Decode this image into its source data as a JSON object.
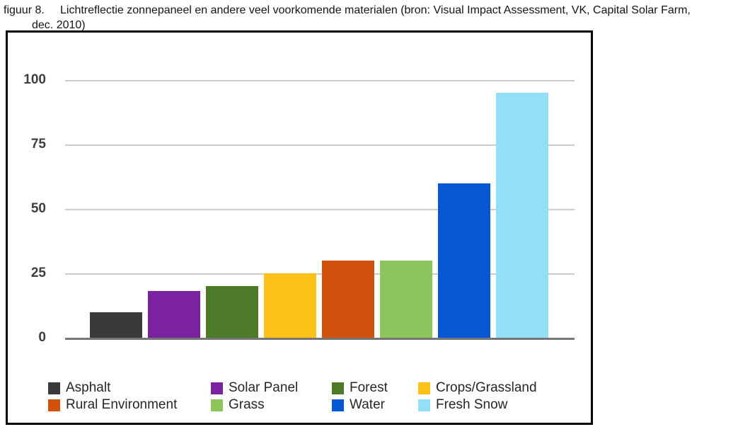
{
  "caption": {
    "prefix": "figuur 8.",
    "line1": "Lichtreflectie zonnepaneel en andere veel voorkomende materialen (bron: Visual Impact Assessment, VK, Capital Solar Farm,",
    "line2": "dec. 2010)"
  },
  "chart_data": {
    "type": "bar",
    "title": "",
    "xlabel": "",
    "ylabel": "",
    "categories": [
      "Asphalt",
      "Solar Panel",
      "Forest",
      "Crops/Grassland",
      "Rural Environment",
      "Grass",
      "Water",
      "Fresh Snow"
    ],
    "values": [
      10,
      18,
      20,
      25,
      30,
      30,
      60,
      95
    ],
    "colors": [
      "#3a3a3a",
      "#7b22a0",
      "#4d7a28",
      "#fbc116",
      "#d1520d",
      "#8dc55c",
      "#0857d4",
      "#93dff7"
    ],
    "ylim": [
      0,
      100
    ],
    "yticks": [
      0,
      25,
      50,
      75,
      100
    ],
    "grid": true,
    "grid_color": "#cbcbcb",
    "axis_color": "#757575",
    "legend_position": "bottom",
    "legend_rows": [
      [
        "Asphalt",
        "Solar Panel",
        "Forest",
        "Crops/Grassland"
      ],
      [
        "Rural Environment",
        "Grass",
        "Water",
        "Fresh Snow"
      ]
    ]
  }
}
